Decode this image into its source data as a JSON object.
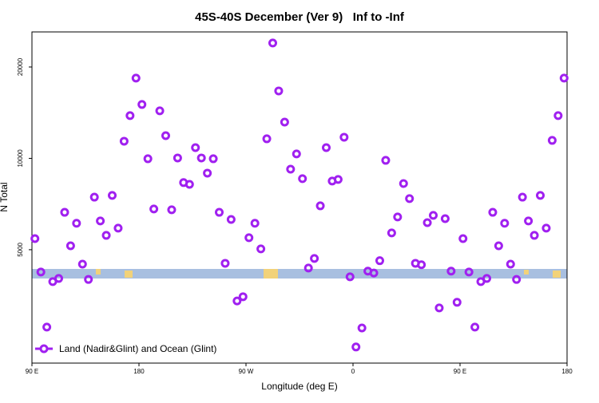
{
  "chart_data": {
    "type": "scatter",
    "title": "45S-40S December (Ver 9)   Inf to -Inf",
    "xlabel": "Longitude (deg E)",
    "ylabel": "N Total",
    "xlim": [
      90,
      540
    ],
    "xticks": [
      {
        "value": 90,
        "label": "90 E"
      },
      180,
      {
        "value": 270,
        "label": "90 W"
      },
      {
        "value": 360,
        "label": "0"
      },
      {
        "value": 450,
        "label": "90 E"
      },
      {
        "value": 540,
        "label": "180"
      }
    ],
    "ylim": [
      2115,
      26100
    ],
    "yticks": [
      5000,
      10000,
      20000
    ],
    "log_y": true,
    "legend": "lower left",
    "series": [
      {
        "name": "Land (Nadir&Glint) and Ocean (Glint)",
        "color": "#a020f0",
        "x": [
          92.5,
          97.5,
          102.5,
          107.5,
          112.5,
          117.5,
          122.5,
          127.5,
          132.5,
          137.5,
          142.5,
          147.5,
          152.5,
          157.5,
          162.5,
          167.5,
          172.5,
          177.5,
          182.5,
          187.5,
          192.5,
          197.5,
          202.5,
          207.5,
          212.5,
          217.5,
          222.5,
          227.5,
          232.5,
          237.5,
          242.5,
          247.5,
          252.5,
          257.5,
          262.5,
          267.5,
          272.5,
          277.5,
          282.5,
          287.5,
          292.5,
          297.5,
          302.5,
          307.5,
          312.5,
          317.5,
          322.5,
          327.5,
          332.5,
          337.5,
          342.5,
          347.5,
          352.5,
          357.5,
          362.5,
          367.5,
          372.5,
          377.5,
          382.5,
          387.5,
          392.5,
          397.5,
          402.5,
          407.5,
          412.5,
          417.5,
          422.5,
          427.5,
          432.5,
          437.5,
          442.5,
          447.5,
          452.5,
          457.5,
          462.5,
          467.5,
          472.5,
          477.5,
          482.5,
          487.5,
          492.5,
          497.5,
          502.5,
          507.5,
          512.5,
          517.5,
          522.5,
          527.5,
          532.5,
          537.5
        ],
        "values": [
          5440,
          4220,
          2780,
          3925,
          4020,
          6640,
          5150,
          6110,
          4480,
          3990,
          7450,
          6220,
          5575,
          7550,
          5890,
          11390,
          13830,
          18380,
          15050,
          9970,
          6810,
          14340,
          11880,
          6770,
          10030,
          8320,
          8210,
          10850,
          10030,
          8940,
          9970,
          6640,
          4510,
          6290,
          3390,
          3500,
          5475,
          6110,
          5030,
          11600,
          23990,
          16680,
          13170,
          9210,
          10340,
          8570,
          4350,
          4680,
          6975,
          10850,
          8420,
          8520,
          11740,
          4070,
          2390,
          2760,
          4250,
          4190,
          4600,
          9850,
          5680,
          6410,
          8260,
          7370,
          4510,
          4460,
          6140,
          6490,
          3215,
          6330,
          4250,
          3355,
          5440,
          4220,
          2780,
          3925,
          4020,
          6640,
          5150,
          6110,
          4480,
          3990,
          7450,
          6220,
          5575,
          7550,
          5890,
          11460,
          13830,
          18380
        ]
      }
    ]
  }
}
